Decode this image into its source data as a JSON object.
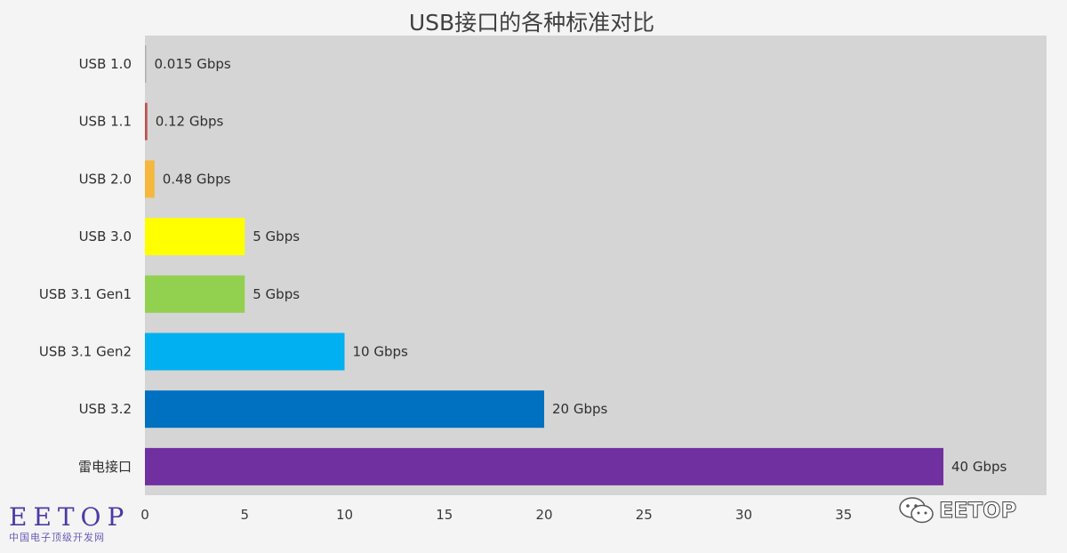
{
  "chart_data": {
    "type": "bar",
    "orientation": "horizontal",
    "title": "USB接口的各种标准对比",
    "xlabel": "",
    "ylabel": "",
    "xlim": [
      0,
      40
    ],
    "x_ticks": [
      0,
      5,
      10,
      15,
      20,
      25,
      30,
      35
    ],
    "grid": false,
    "categories": [
      "USB 1.0",
      "USB 1.1",
      "USB 2.0",
      "USB 3.0",
      "USB 3.1 Gen1",
      "USB 3.1 Gen2",
      "USB 3.2",
      "雷电接口"
    ],
    "values": [
      0.015,
      0.12,
      0.48,
      5,
      5,
      10,
      20,
      40
    ],
    "data_labels": [
      "0.015 Gbps",
      "0.12 Gbps",
      "0.48 Gbps",
      "5 Gbps",
      "5 Gbps",
      "10 Gbps",
      "20 Gbps",
      "40 Gbps"
    ],
    "colors": [
      "#b0b0b0",
      "#c0504d",
      "#f5b83d",
      "#ffff00",
      "#92d050",
      "#00b0f0",
      "#0070c0",
      "#7030a0"
    ],
    "plot_background": "#d5d5d5"
  },
  "watermarks": {
    "left_logo": "EETOP",
    "left_subtitle": "中国电子顶级开发网",
    "right_logo": "EETOP",
    "right_icon": "wechat-icon"
  }
}
